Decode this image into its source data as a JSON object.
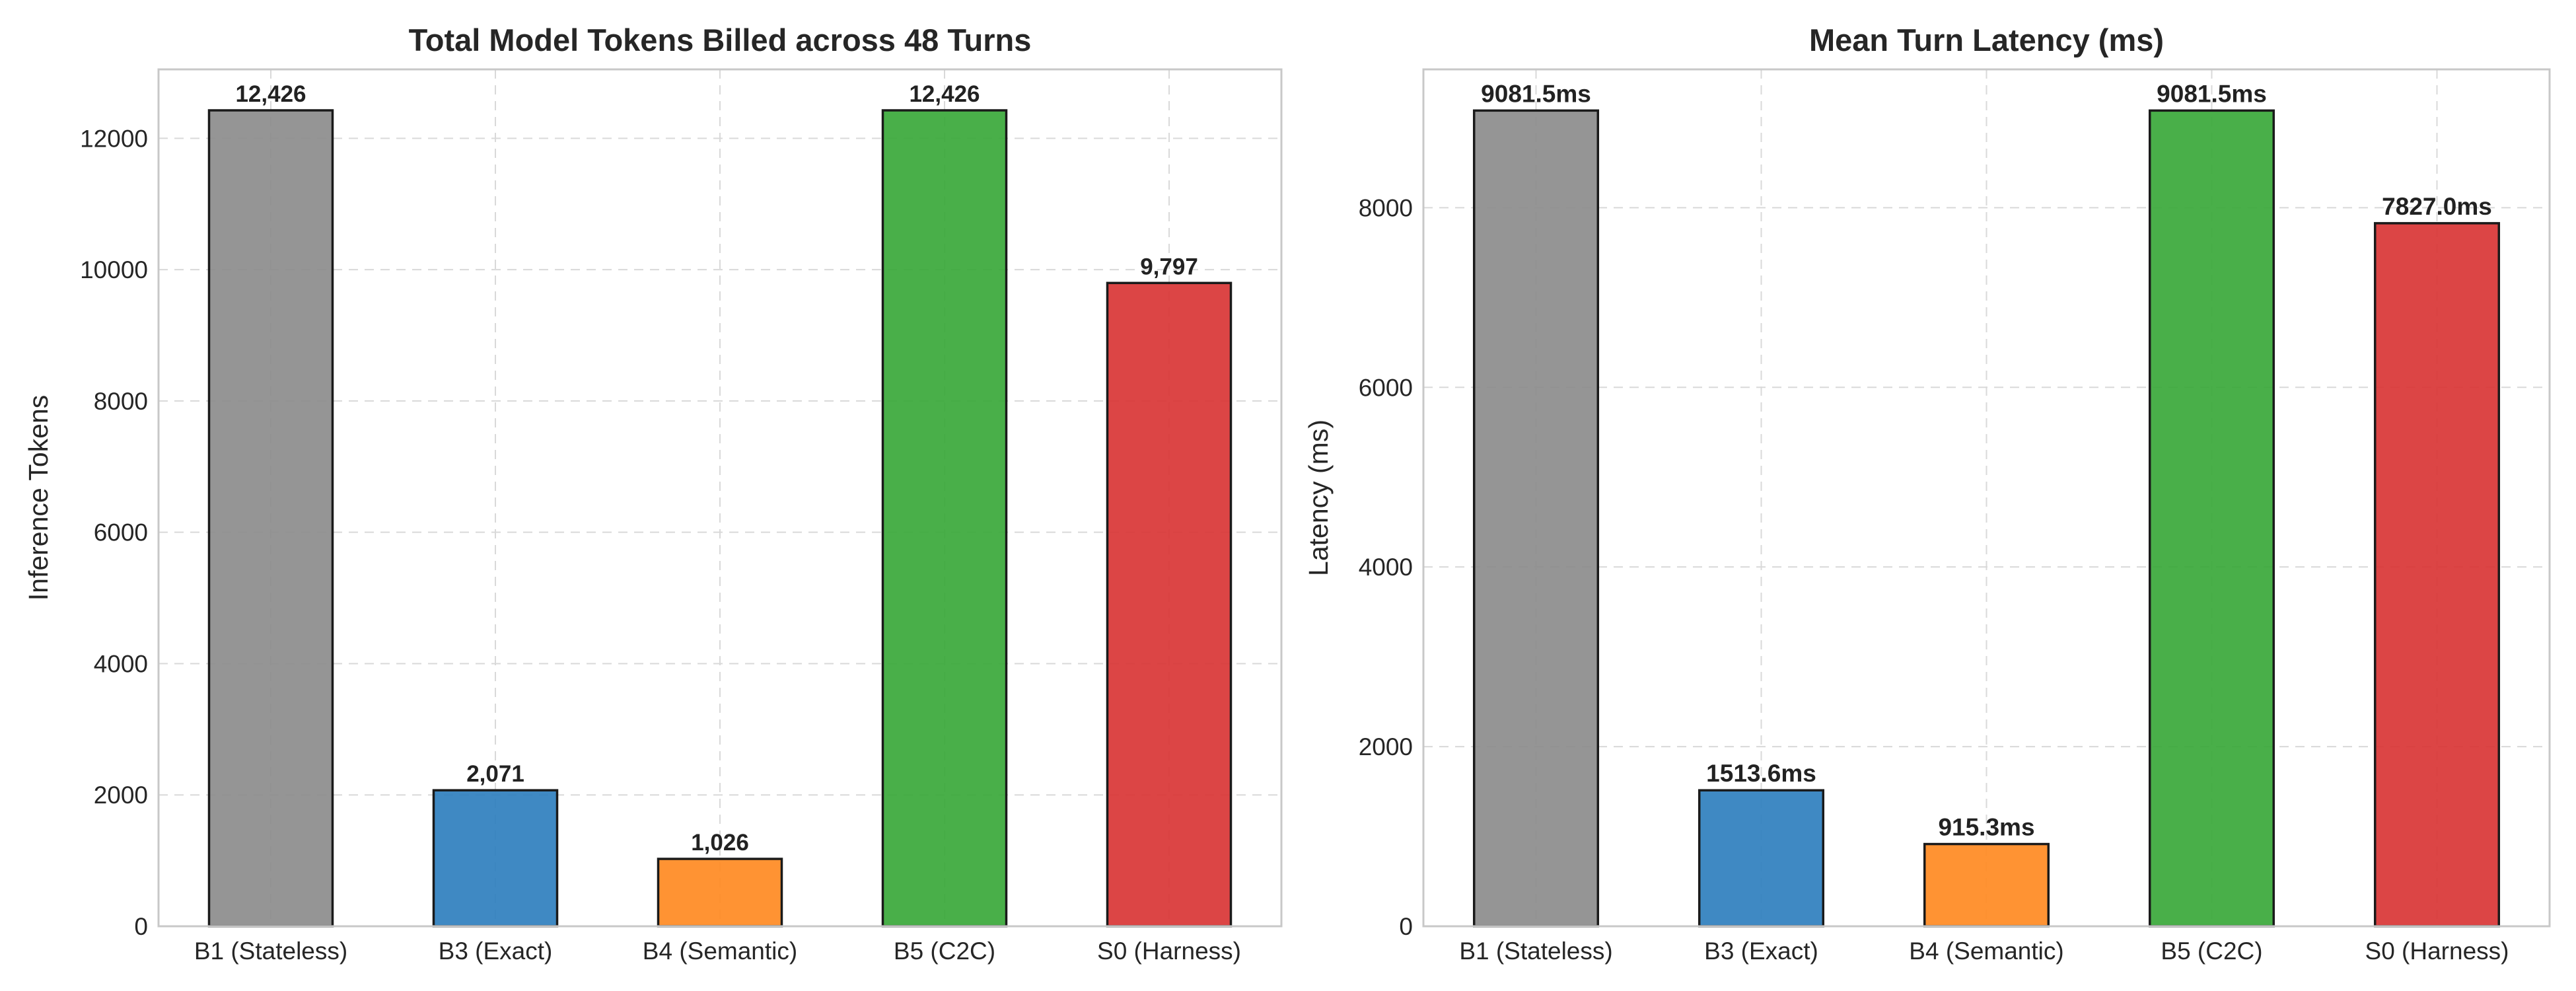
{
  "colors": {
    "gray": "#8c8c8c",
    "blue": "#2f7fbe",
    "orange": "#ff8a22",
    "green": "#3aa83a",
    "red": "#d93535",
    "edge": "#1a1a1a",
    "grid": "#d9d9d9",
    "frame": "#c8c8c8"
  },
  "chart_data": [
    {
      "type": "bar",
      "title": "Total Model Tokens Billed across 48 Turns",
      "xlabel": "",
      "ylabel": "Inference Tokens",
      "categories": [
        "B1 (Stateless)",
        "B3 (Exact)",
        "B4 (Semantic)",
        "B5 (C2C)",
        "S0 (Harness)"
      ],
      "values": [
        12426,
        2071,
        1026,
        12426,
        9797
      ],
      "value_labels": [
        "12,426",
        "2,071",
        "1,026",
        "12,426",
        "9,797"
      ],
      "bar_colors": [
        "#8c8c8c",
        "#2f7fbe",
        "#ff8a22",
        "#3aa83a",
        "#d93535"
      ],
      "ylim": [
        0,
        13050
      ],
      "yticks": [
        0,
        2000,
        4000,
        6000,
        8000,
        10000,
        12000
      ],
      "ytick_labels": [
        "0",
        "2000",
        "4000",
        "6000",
        "8000",
        "10000",
        "12000"
      ],
      "grid": true,
      "legend": "none"
    },
    {
      "type": "bar",
      "title": "Mean Turn Latency (ms)",
      "xlabel": "",
      "ylabel": "Latency (ms)",
      "categories": [
        "B1 (Stateless)",
        "B3 (Exact)",
        "B4 (Semantic)",
        "B5 (C2C)",
        "S0 (Harness)"
      ],
      "values": [
        9081.5,
        1513.6,
        915.3,
        9081.5,
        7827.0
      ],
      "value_labels": [
        "9081.5ms",
        "1513.6ms",
        "915.3ms",
        "9081.5ms",
        "7827.0ms"
      ],
      "bar_colors": [
        "#8c8c8c",
        "#2f7fbe",
        "#ff8a22",
        "#3aa83a",
        "#d93535"
      ],
      "ylim": [
        0,
        9540
      ],
      "yticks": [
        0,
        2000,
        4000,
        6000,
        8000
      ],
      "ytick_labels": [
        "0",
        "2000",
        "4000",
        "6000",
        "8000"
      ],
      "grid": true,
      "legend": "none"
    }
  ]
}
